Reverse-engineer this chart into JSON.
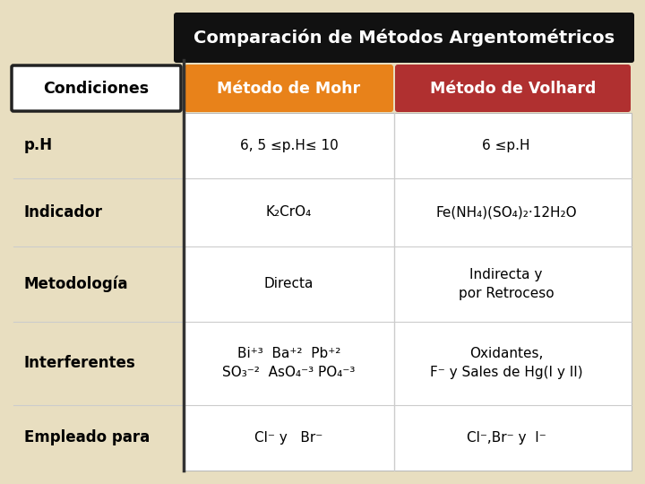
{
  "title": "Comparación de Métodos Argentométricos",
  "title_bg": "#111111",
  "title_color": "#ffffff",
  "header_mohr": "Método de Mohr",
  "header_volhard": "Método de Volhard",
  "header_mohr_bg": "#E8821A",
  "header_volhard_bg": "#B03030",
  "header_text_color": "#ffffff",
  "condiciones_label": "Condiciones",
  "background_color": "#E8DEC0",
  "table_bg": "#FFFFFF",
  "row_labels": [
    "p.H",
    "Indicador",
    "Metodología",
    "Interferentes",
    "Empleado para"
  ],
  "mohr_values": [
    "6, 5 ≤p.H≤ 10",
    "K₂CrO₄",
    "Directa",
    "Bi⁺³  Ba⁺²  Pb⁺²\nSO₃⁻²  AsO₄⁻³ PO₄⁻³",
    "Cl⁻ y   Br⁻"
  ],
  "volhard_values": [
    "6 ≤p.H",
    "Fe(NH₄)(SO₄)₂·12H₂O",
    "Indirecta y\npor Retroceso",
    "Oxidantes,\nF⁻ y Sales de Hg(I y II)",
    "Cl⁻,Br⁻ y  I⁻"
  ],
  "label_fontsize": 12,
  "value_fontsize": 11,
  "header_fontsize": 12.5,
  "title_fontsize": 14
}
